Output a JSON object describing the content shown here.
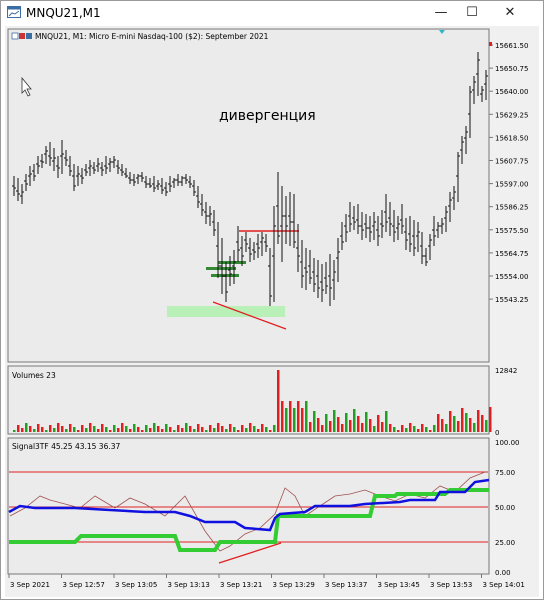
{
  "window": {
    "title": "MNQU21,M1",
    "minimize_glyph": "—",
    "maximize_glyph": "☐",
    "close_glyph": "✕"
  },
  "main_chart": {
    "symbol_line": "MNQU21, M1:  Micro E-mini Nasdaq-100 ($2): September 2021",
    "annotation": "дивергенция",
    "price_ticks": [
      "15661.50",
      "15650.75",
      "15640.00",
      "15629.25",
      "15618.50",
      "15607.75",
      "15597.00",
      "15586.25",
      "15575.50",
      "15564.75",
      "15554.00",
      "15543.25"
    ]
  },
  "volume_panel": {
    "label": "Volumes 23",
    "ticks": [
      "12842",
      "0"
    ]
  },
  "indicator_panel": {
    "label": "Signal3TF 45.25 43.15 36.37",
    "ticks": [
      "100.00",
      "75.00",
      "50.00",
      "25.00",
      "0.00"
    ]
  },
  "time_axis": {
    "labels": [
      "3 Sep 2021",
      "3 Sep 12:57",
      "3 Sep 13:05",
      "3 Sep 13:13",
      "3 Sep 13:21",
      "3 Sep 13:29",
      "3 Sep 13:37",
      "3 Sep 13:45",
      "3 Sep 13:53",
      "3 Sep 14:01"
    ]
  },
  "colors": {
    "bars": "#000000",
    "volume_up": "#22a022",
    "volume_down": "#e02020",
    "signal_blue": "#1010e0",
    "signal_green": "#33cc33",
    "signal_thin": "#a05050",
    "level_lines": "#e02020",
    "highlight_zone": "#b8f0b8"
  }
}
